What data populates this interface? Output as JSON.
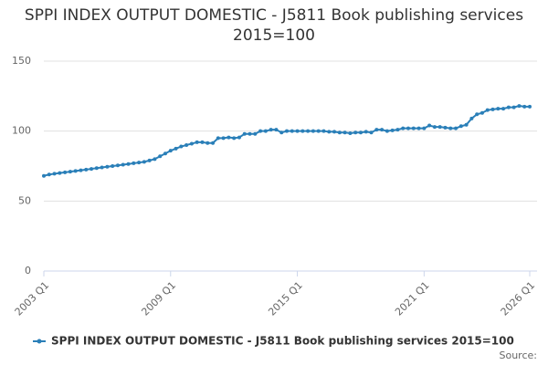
{
  "chart_data": {
    "type": "line",
    "title": "SPPI INDEX OUTPUT DOMESTIC - J5811 Book publishing services 2015=100",
    "source": "Source:",
    "categories": [
      "2003 Q1",
      null,
      null,
      null,
      null,
      null,
      null,
      null,
      null,
      null,
      null,
      null,
      null,
      null,
      null,
      null,
      null,
      null,
      null,
      null,
      null,
      null,
      null,
      null,
      "2009 Q1",
      null,
      null,
      null,
      null,
      null,
      null,
      null,
      null,
      null,
      null,
      null,
      null,
      null,
      null,
      null,
      null,
      null,
      null,
      null,
      null,
      null,
      null,
      null,
      "2015 Q1",
      null,
      null,
      null,
      null,
      null,
      null,
      null,
      null,
      null,
      null,
      null,
      null,
      null,
      null,
      null,
      null,
      null,
      null,
      null,
      null,
      null,
      null,
      null,
      "2021 Q1",
      null,
      null,
      null,
      null,
      null,
      null,
      null,
      null,
      null,
      null,
      null,
      null,
      null,
      null,
      null,
      null,
      null,
      null,
      null,
      "2026 Q1"
    ],
    "series": [
      {
        "name": "SPPI INDEX OUTPUT DOMESTIC - J5811 Book publishing services 2015=100",
        "color": "#2a7fb8",
        "values": [
          68,
          69,
          69.5,
          70,
          70.5,
          71,
          71.5,
          72,
          72.5,
          73,
          73.5,
          74,
          74.5,
          75,
          75.5,
          76,
          76.5,
          77,
          77.5,
          78,
          79,
          80,
          82,
          84,
          86,
          87.5,
          89,
          90,
          91,
          92,
          92,
          91.5,
          91.5,
          95,
          95,
          95.5,
          95,
          95.5,
          98,
          98,
          98,
          100,
          100,
          101,
          101,
          99,
          100,
          100,
          100,
          100,
          100,
          100,
          100,
          100,
          99.5,
          99.5,
          99,
          99,
          98.5,
          99,
          99,
          99.5,
          99,
          101,
          101,
          100,
          100.5,
          101,
          102,
          102,
          102,
          102,
          102,
          104,
          103,
          103,
          102.5,
          102,
          102,
          103.5,
          104.5,
          109,
          112,
          113,
          115,
          115.5,
          116,
          116,
          117,
          117,
          118,
          117.5,
          117.5
        ]
      }
    ],
    "ylim": [
      0,
      150
    ],
    "yticks": [
      0,
      50,
      100,
      150
    ],
    "grid": true,
    "legend": "bottom"
  }
}
